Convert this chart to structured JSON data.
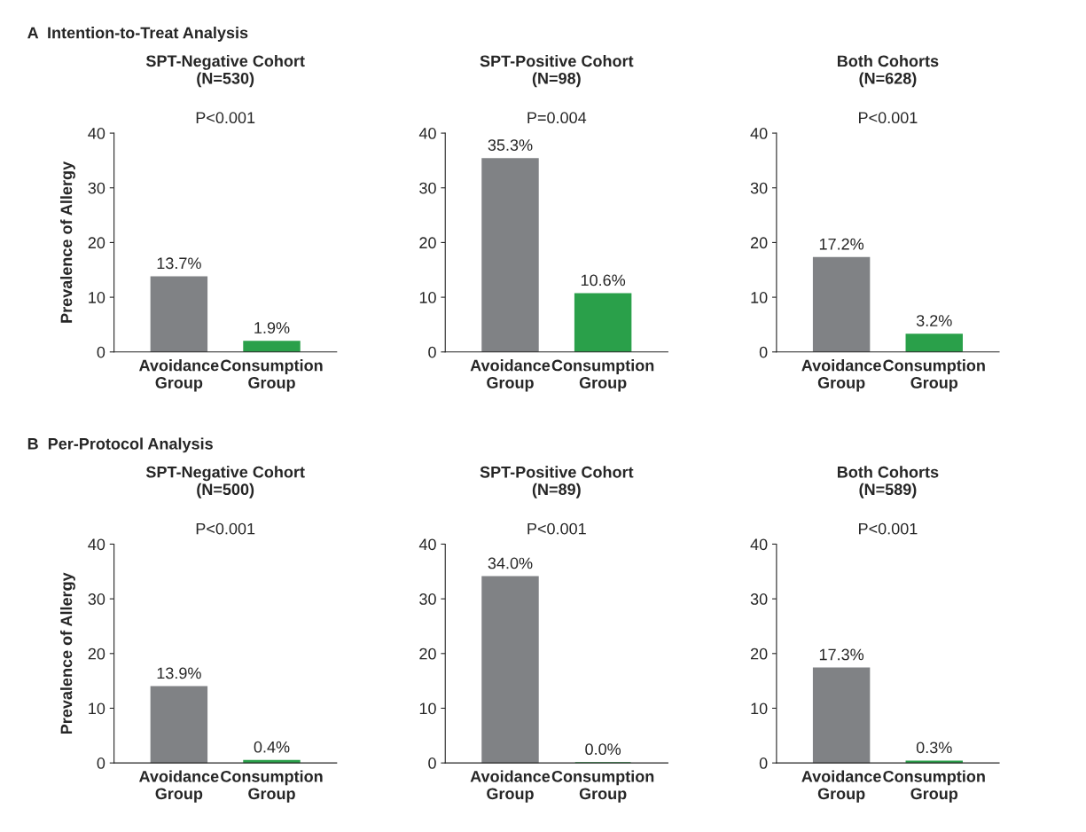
{
  "chart_data": [
    {
      "type": "bar",
      "title": "SPT-Negative Cohort\n(N=530)",
      "ylabel": "Prevalence of Allergy",
      "annotations": [
        "A  Intention-to-Treat Analysis",
        "P<0.001"
      ],
      "categories": [
        "Avoidance\nGroup",
        "Consumption\nGroup"
      ],
      "values": [
        13.7,
        1.9
      ],
      "colors": [
        "#808285",
        "#2aa04a"
      ],
      "value_labels": [
        "13.7%",
        "1.9%"
      ],
      "ylim": [
        0,
        40
      ],
      "yticks": [
        0,
        10,
        20,
        30,
        40
      ],
      "grid": false,
      "legend": false
    },
    {
      "type": "bar",
      "title": "SPT-Positive Cohort\n(N=98)",
      "annotations": [
        "P=0.004"
      ],
      "categories": [
        "Avoidance\nGroup",
        "Consumption\nGroup"
      ],
      "values": [
        35.3,
        10.6
      ],
      "colors": [
        "#808285",
        "#2aa04a"
      ],
      "value_labels": [
        "35.3%",
        "10.6%"
      ],
      "ylim": [
        0,
        40
      ],
      "yticks": [
        0,
        10,
        20,
        30,
        40
      ],
      "grid": false,
      "legend": false
    },
    {
      "type": "bar",
      "title": "Both Cohorts\n(N=628)",
      "annotations": [
        "P<0.001"
      ],
      "categories": [
        "Avoidance\nGroup",
        "Consumption\nGroup"
      ],
      "values": [
        17.2,
        3.2
      ],
      "colors": [
        "#808285",
        "#2aa04a"
      ],
      "value_labels": [
        "17.2%",
        "3.2%"
      ],
      "ylim": [
        0,
        40
      ],
      "yticks": [
        0,
        10,
        20,
        30,
        40
      ],
      "grid": false,
      "legend": false
    },
    {
      "type": "bar",
      "title": "SPT-Negative Cohort\n(N=500)",
      "ylabel": "Prevalence of Allergy",
      "annotations": [
        "B  Per-Protocol Analysis",
        "P<0.001"
      ],
      "categories": [
        "Avoidance\nGroup",
        "Consumption\nGroup"
      ],
      "values": [
        13.9,
        0.4
      ],
      "colors": [
        "#808285",
        "#2aa04a"
      ],
      "value_labels": [
        "13.9%",
        "0.4%"
      ],
      "ylim": [
        0,
        40
      ],
      "yticks": [
        0,
        10,
        20,
        30,
        40
      ],
      "grid": false,
      "legend": false
    },
    {
      "type": "bar",
      "title": "SPT-Positive Cohort\n(N=89)",
      "annotations": [
        "P<0.001"
      ],
      "categories": [
        "Avoidance\nGroup",
        "Consumption\nGroup"
      ],
      "values": [
        34.0,
        0.0
      ],
      "colors": [
        "#808285",
        "#2aa04a"
      ],
      "value_labels": [
        "34.0%",
        "0.0%"
      ],
      "ylim": [
        0,
        40
      ],
      "yticks": [
        0,
        10,
        20,
        30,
        40
      ],
      "grid": false,
      "legend": false
    },
    {
      "type": "bar",
      "title": "Both Cohorts\n(N=589)",
      "annotations": [
        "P<0.001"
      ],
      "categories": [
        "Avoidance\nGroup",
        "Consumption\nGroup"
      ],
      "values": [
        17.3,
        0.3
      ],
      "colors": [
        "#808285",
        "#2aa04a"
      ],
      "value_labels": [
        "17.3%",
        "0.3%"
      ],
      "ylim": [
        0,
        40
      ],
      "yticks": [
        0,
        10,
        20,
        30,
        40
      ],
      "grid": false,
      "legend": false
    }
  ]
}
